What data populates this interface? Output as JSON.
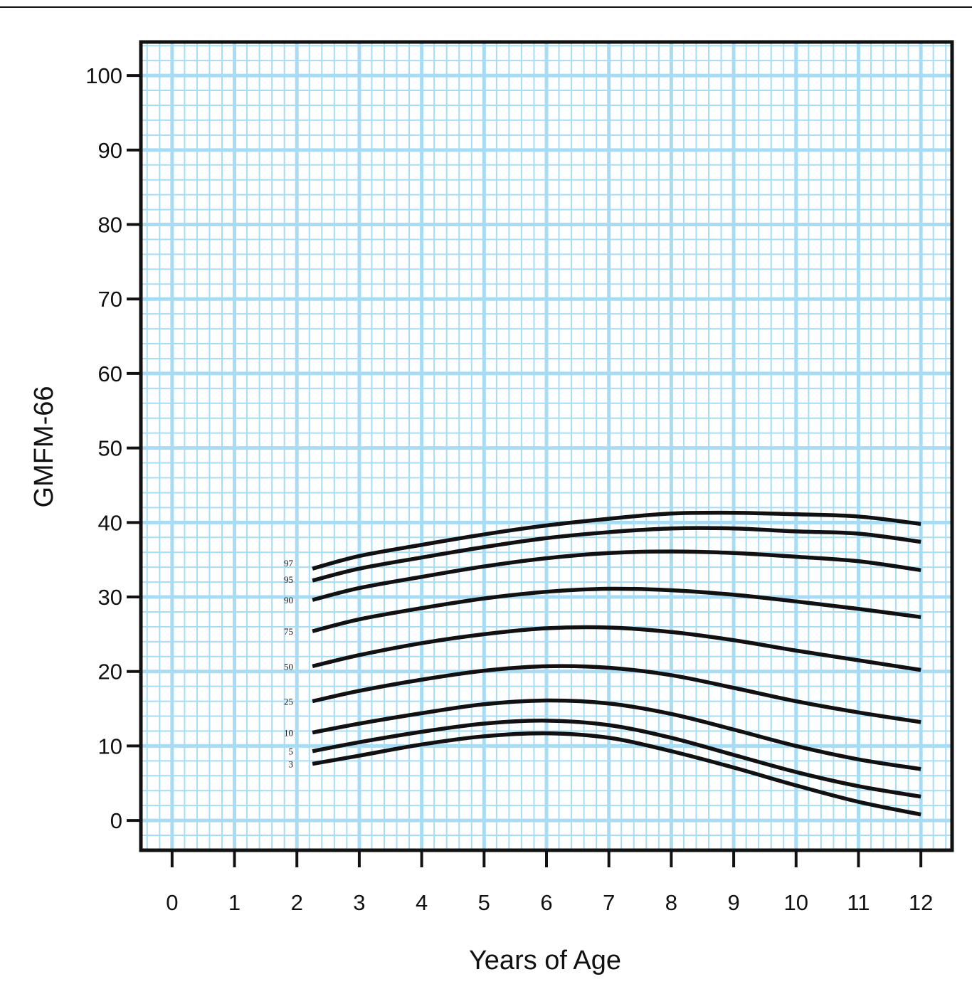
{
  "chart_data": {
    "type": "line",
    "title": "",
    "xlabel": "Years of Age",
    "ylabel": "GMFM-66",
    "xlim": [
      -0.5,
      12.5
    ],
    "ylim": [
      -4,
      104.5
    ],
    "x_ticks": [
      0,
      1,
      2,
      3,
      4,
      5,
      6,
      7,
      8,
      9,
      10,
      11,
      12
    ],
    "y_ticks": [
      0,
      10,
      20,
      30,
      40,
      50,
      60,
      70,
      80,
      90,
      100
    ],
    "x_tick_labels": [
      "0",
      "1",
      "2",
      "3",
      "4",
      "5",
      "6",
      "7",
      "8",
      "9",
      "10",
      "11",
      "12"
    ],
    "y_tick_labels": [
      "0",
      "10",
      "20",
      "30",
      "40",
      "50",
      "60",
      "70",
      "80",
      "90",
      "100"
    ],
    "grid": true,
    "minor_grid_step": {
      "x": 0.2,
      "y": 2
    },
    "colors": {
      "grid": "#a8dcf5",
      "line": "#111111",
      "frame": "#111111"
    },
    "series": [
      {
        "name": "97",
        "x": [
          2.25,
          3,
          4,
          5,
          6,
          7,
          8,
          9,
          10,
          11,
          12
        ],
        "values": [
          33.8,
          35.5,
          37.0,
          38.4,
          39.6,
          40.5,
          41.2,
          41.3,
          41.1,
          40.8,
          39.8
        ]
      },
      {
        "name": "95",
        "x": [
          2.25,
          3,
          4,
          5,
          6,
          7,
          8,
          9,
          10,
          11,
          12
        ],
        "values": [
          32.2,
          33.8,
          35.3,
          36.7,
          37.9,
          38.7,
          39.2,
          39.2,
          38.8,
          38.5,
          37.4
        ]
      },
      {
        "name": "90",
        "x": [
          2.25,
          3,
          4,
          5,
          6,
          7,
          8,
          9,
          10,
          11,
          12
        ],
        "values": [
          29.6,
          31.2,
          32.7,
          34.1,
          35.2,
          35.9,
          36.1,
          35.9,
          35.4,
          34.8,
          33.6
        ]
      },
      {
        "name": "75",
        "x": [
          2.25,
          3,
          4,
          5,
          6,
          7,
          8,
          9,
          10,
          11,
          12
        ],
        "values": [
          25.4,
          27.0,
          28.5,
          29.8,
          30.7,
          31.1,
          30.9,
          30.3,
          29.4,
          28.4,
          27.3
        ]
      },
      {
        "name": "50",
        "x": [
          2.25,
          3,
          4,
          5,
          6,
          7,
          8,
          9,
          10,
          11,
          12
        ],
        "values": [
          20.7,
          22.2,
          23.8,
          25.0,
          25.8,
          25.9,
          25.3,
          24.2,
          22.8,
          21.5,
          20.2
        ]
      },
      {
        "name": "25",
        "x": [
          2.25,
          3,
          4,
          5,
          6,
          7,
          8,
          9,
          10,
          11,
          12
        ],
        "values": [
          16.0,
          17.4,
          18.9,
          20.1,
          20.7,
          20.5,
          19.5,
          17.8,
          16.0,
          14.5,
          13.2
        ]
      },
      {
        "name": "10",
        "x": [
          2.25,
          3,
          4,
          5,
          6,
          7,
          8,
          9,
          10,
          11,
          12
        ],
        "values": [
          11.8,
          13.0,
          14.4,
          15.6,
          16.1,
          15.7,
          14.3,
          12.2,
          10.0,
          8.2,
          6.9
        ]
      },
      {
        "name": "5",
        "x": [
          2.25,
          3,
          4,
          5,
          6,
          7,
          8,
          9,
          10,
          11,
          12
        ],
        "values": [
          9.3,
          10.5,
          11.9,
          13.0,
          13.4,
          12.8,
          11.1,
          8.8,
          6.5,
          4.6,
          3.2
        ]
      },
      {
        "name": "3",
        "x": [
          2.25,
          3,
          4,
          5,
          6,
          7,
          8,
          9,
          10,
          11,
          12
        ],
        "values": [
          7.6,
          8.7,
          10.2,
          11.3,
          11.7,
          11.1,
          9.3,
          7.1,
          4.7,
          2.5,
          0.8
        ]
      }
    ]
  }
}
